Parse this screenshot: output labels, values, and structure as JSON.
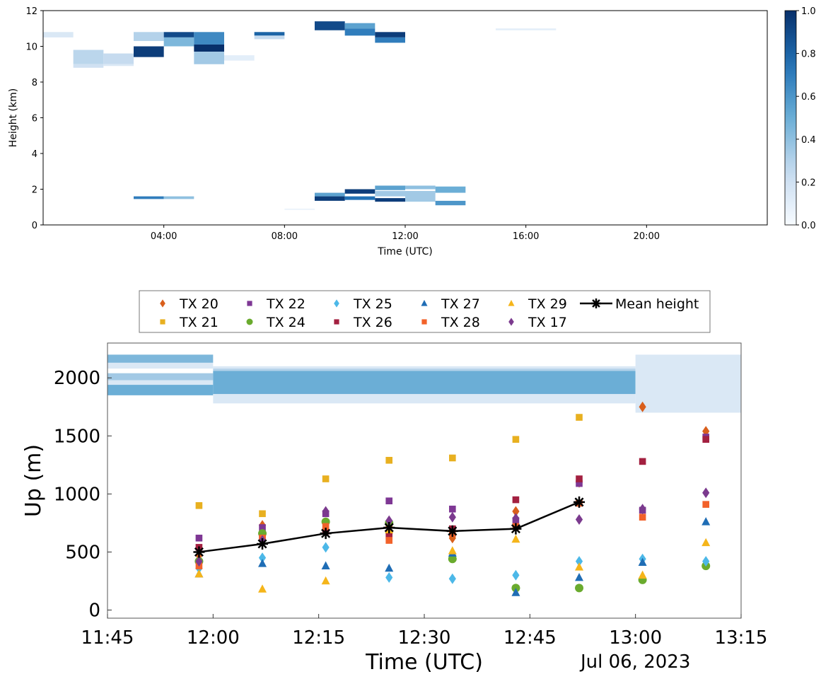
{
  "chart_data": [
    {
      "type": "heatmap",
      "xlabel": "Time (UTC)",
      "ylabel": "Height (km)",
      "x_ticks": [
        "04:00",
        "08:00",
        "12:00",
        "16:00",
        "20:00"
      ],
      "x_tick_hours": [
        4,
        8,
        12,
        16,
        20
      ],
      "y_ticks": [
        "0",
        "2",
        "4",
        "6",
        "8",
        "10",
        "12"
      ],
      "xlim_hours": [
        0,
        24
      ],
      "ylim_km": [
        0,
        12
      ],
      "colorbar": {
        "ticks": [
          "0.0",
          "0.2",
          "0.4",
          "0.6",
          "0.8",
          "1.0"
        ],
        "range": [
          0,
          1
        ],
        "colormap": "Blues"
      },
      "cells": [
        {
          "t0": 0.0,
          "t1": 1.0,
          "h0": 10.5,
          "h1": 10.8,
          "v": 0.15
        },
        {
          "t0": 1.0,
          "t1": 2.0,
          "h0": 9.0,
          "h1": 9.8,
          "v": 0.28
        },
        {
          "t0": 1.0,
          "t1": 2.0,
          "h0": 8.8,
          "h1": 9.0,
          "v": 0.2
        },
        {
          "t0": 2.0,
          "t1": 3.0,
          "h0": 9.0,
          "h1": 9.6,
          "v": 0.25
        },
        {
          "t0": 2.0,
          "t1": 3.0,
          "h0": 8.9,
          "h1": 9.0,
          "v": 0.15
        },
        {
          "t0": 3.0,
          "t1": 4.0,
          "h0": 10.3,
          "h1": 10.8,
          "v": 0.3
        },
        {
          "t0": 3.0,
          "t1": 4.0,
          "h0": 9.4,
          "h1": 10.0,
          "v": 0.95
        },
        {
          "t0": 4.0,
          "t1": 5.0,
          "h0": 10.5,
          "h1": 10.8,
          "v": 0.9
        },
        {
          "t0": 4.0,
          "t1": 5.0,
          "h0": 10.0,
          "h1": 10.5,
          "v": 0.45
        },
        {
          "t0": 5.0,
          "t1": 6.0,
          "h0": 10.1,
          "h1": 10.8,
          "v": 0.65
        },
        {
          "t0": 5.0,
          "t1": 6.0,
          "h0": 9.7,
          "h1": 10.1,
          "v": 1.0
        },
        {
          "t0": 5.0,
          "t1": 6.0,
          "h0": 9.0,
          "h1": 9.7,
          "v": 0.35
        },
        {
          "t0": 6.0,
          "t1": 7.0,
          "h0": 9.2,
          "h1": 9.5,
          "v": 0.1
        },
        {
          "t0": 7.0,
          "t1": 8.0,
          "h0": 10.6,
          "h1": 10.8,
          "v": 0.8
        },
        {
          "t0": 7.0,
          "t1": 8.0,
          "h0": 10.4,
          "h1": 10.6,
          "v": 0.25
        },
        {
          "t0": 9.0,
          "t1": 10.0,
          "h0": 10.9,
          "h1": 11.4,
          "v": 0.9
        },
        {
          "t0": 10.0,
          "t1": 11.0,
          "h0": 11.0,
          "h1": 11.3,
          "v": 0.55
        },
        {
          "t0": 10.0,
          "t1": 11.0,
          "h0": 10.6,
          "h1": 11.0,
          "v": 0.7
        },
        {
          "t0": 11.0,
          "t1": 12.0,
          "h0": 10.5,
          "h1": 10.8,
          "v": 0.95
        },
        {
          "t0": 11.0,
          "t1": 12.0,
          "h0": 10.2,
          "h1": 10.5,
          "v": 0.7
        },
        {
          "t0": 15.0,
          "t1": 17.0,
          "h0": 10.9,
          "h1": 11.0,
          "v": 0.1
        },
        {
          "t0": 3.0,
          "t1": 4.0,
          "h0": 1.45,
          "h1": 1.6,
          "v": 0.7
        },
        {
          "t0": 4.0,
          "t1": 5.0,
          "h0": 1.45,
          "h1": 1.6,
          "v": 0.4
        },
        {
          "t0": 8.0,
          "t1": 9.0,
          "h0": 0.85,
          "h1": 0.9,
          "v": 0.1
        },
        {
          "t0": 9.0,
          "t1": 10.0,
          "h0": 1.6,
          "h1": 1.8,
          "v": 0.55
        },
        {
          "t0": 9.0,
          "t1": 10.0,
          "h0": 1.35,
          "h1": 1.6,
          "v": 0.95
        },
        {
          "t0": 10.0,
          "t1": 11.0,
          "h0": 1.75,
          "h1": 2.0,
          "v": 0.95
        },
        {
          "t0": 10.0,
          "t1": 11.0,
          "h0": 1.4,
          "h1": 1.6,
          "v": 0.75
        },
        {
          "t0": 11.0,
          "t1": 12.0,
          "h0": 1.95,
          "h1": 2.2,
          "v": 0.55
        },
        {
          "t0": 11.0,
          "t1": 12.0,
          "h0": 1.6,
          "h1": 1.9,
          "v": 0.35
        },
        {
          "t0": 11.0,
          "t1": 12.0,
          "h0": 1.3,
          "h1": 1.5,
          "v": 0.95
        },
        {
          "t0": 12.0,
          "t1": 13.0,
          "h0": 2.0,
          "h1": 2.2,
          "v": 0.4
        },
        {
          "t0": 12.0,
          "t1": 13.0,
          "h0": 1.3,
          "h1": 1.9,
          "v": 0.35
        },
        {
          "t0": 13.0,
          "t1": 14.0,
          "h0": 1.8,
          "h1": 2.15,
          "v": 0.5
        },
        {
          "t0": 13.0,
          "t1": 14.0,
          "h0": 1.1,
          "h1": 1.35,
          "v": 0.6
        }
      ]
    },
    {
      "type": "scatter",
      "xlabel": "Time (UTC)",
      "ylabel": "Up (m)",
      "date_label": "Jul 06, 2023",
      "x_ticks": [
        "11:45",
        "12:00",
        "12:15",
        "12:30",
        "12:45",
        "13:00",
        "13:15"
      ],
      "y_ticks": [
        "0",
        "500",
        "1000",
        "1500",
        "2000"
      ],
      "xlim": [
        "11:45",
        "13:15"
      ],
      "ylim": [
        -70,
        2300
      ],
      "background_bands": [
        {
          "t0": "11:45",
          "t1": "12:00",
          "h0": 2130,
          "h1": 2200,
          "v": 0.45
        },
        {
          "t0": "11:45",
          "t1": "12:00",
          "h0": 2080,
          "h1": 2130,
          "v": 0.15
        },
        {
          "t0": "11:45",
          "t1": "12:00",
          "h0": 1980,
          "h1": 2040,
          "v": 0.35
        },
        {
          "t0": "11:45",
          "t1": "12:00",
          "h0": 1940,
          "h1": 1980,
          "v": 0.15
        },
        {
          "t0": "11:45",
          "t1": "12:00",
          "h0": 1850,
          "h1": 1940,
          "v": 0.5
        },
        {
          "t0": "12:00",
          "t1": "13:00",
          "h0": 2080,
          "h1": 2100,
          "v": 0.15
        },
        {
          "t0": "12:00",
          "t1": "13:00",
          "h0": 2060,
          "h1": 2080,
          "v": 0.3
        },
        {
          "t0": "12:00",
          "t1": "13:00",
          "h0": 1860,
          "h1": 2060,
          "v": 0.5
        },
        {
          "t0": "12:00",
          "t1": "13:00",
          "h0": 1780,
          "h1": 1860,
          "v": 0.15
        },
        {
          "t0": "13:00",
          "t1": "13:15",
          "h0": 1700,
          "h1": 2200,
          "v": 0.15
        }
      ],
      "series": [
        {
          "name": "TX 20",
          "color": "#d95f1c",
          "marker": "diamond",
          "x": [
            "11:58",
            "12:07",
            "12:16",
            "12:25",
            "12:34",
            "12:43",
            "12:52",
            "13:01",
            "13:10"
          ],
          "y": [
            470,
            730,
            680,
            720,
            620,
            850,
            1100,
            1750,
            1540
          ]
        },
        {
          "name": "TX 21",
          "color": "#e8b020",
          "marker": "square",
          "x": [
            "11:58",
            "12:07",
            "12:16",
            "12:25",
            "12:34",
            "12:43",
            "12:52"
          ],
          "y": [
            900,
            830,
            1130,
            1290,
            1310,
            1470,
            1660
          ]
        },
        {
          "name": "TX 22",
          "color": "#7e3794",
          "marker": "square",
          "x": [
            "11:58",
            "12:07",
            "12:16",
            "12:25",
            "12:34",
            "12:43",
            "12:52",
            "13:01",
            "13:10"
          ],
          "y": [
            620,
            710,
            830,
            940,
            870,
            770,
            1090,
            860,
            1490
          ]
        },
        {
          "name": "TX 24",
          "color": "#6aab2e",
          "marker": "circle",
          "x": [
            "11:58",
            "12:07",
            "12:16",
            "12:25",
            "12:34",
            "12:43",
            "12:52",
            "13:01",
            "13:10"
          ],
          "y": [
            420,
            660,
            760,
            750,
            440,
            190,
            190,
            260,
            380
          ]
        },
        {
          "name": "TX 25",
          "color": "#4cb8e8",
          "marker": "diamond",
          "x": [
            "11:58",
            "12:07",
            "12:16",
            "12:25",
            "12:34",
            "12:43",
            "12:52",
            "13:01",
            "13:10"
          ],
          "y": [
            360,
            450,
            540,
            280,
            270,
            300,
            420,
            440,
            420
          ]
        },
        {
          "name": "TX 26",
          "color": "#a32040",
          "marker": "square",
          "x": [
            "11:58",
            "12:07",
            "12:16",
            "12:25",
            "12:34",
            "12:43",
            "12:52",
            "13:01",
            "13:10"
          ],
          "y": [
            540,
            620,
            680,
            640,
            700,
            950,
            1130,
            1280,
            1470
          ]
        },
        {
          "name": "TX 27",
          "color": "#1f6db5",
          "marker": "triangle",
          "x": [
            "11:58",
            "12:07",
            "12:16",
            "12:25",
            "12:34",
            "12:43",
            "12:52",
            "13:01",
            "13:10"
          ],
          "y": [
            310,
            400,
            380,
            360,
            490,
            150,
            280,
            410,
            760
          ]
        },
        {
          "name": "TX 28",
          "color": "#f2622a",
          "marker": "square",
          "x": [
            "11:58",
            "12:07",
            "12:16",
            "12:25",
            "12:34",
            "12:43",
            "12:52",
            "13:01",
            "13:10"
          ],
          "y": [
            380,
            620,
            720,
            600,
            660,
            720,
            920,
            800,
            910
          ]
        },
        {
          "name": "TX 29",
          "color": "#f5b51a",
          "marker": "triangle",
          "x": [
            "11:58",
            "12:07",
            "12:16",
            "12:25",
            "12:34",
            "12:43",
            "12:52",
            "13:01",
            "13:10"
          ],
          "y": [
            310,
            180,
            250,
            690,
            510,
            610,
            370,
            300,
            580
          ]
        },
        {
          "name": "TX 17",
          "color": "#7b3a8e",
          "marker": "diamond",
          "x": [
            "11:58",
            "12:07",
            "12:16",
            "12:25",
            "12:34",
            "12:43",
            "12:52",
            "13:01",
            "13:10"
          ],
          "y": [
            420,
            600,
            850,
            770,
            800,
            790,
            780,
            870,
            1010
          ]
        },
        {
          "name": "Mean height",
          "color": "#000000",
          "marker": "star-line",
          "x": [
            "11:58",
            "12:07",
            "12:16",
            "12:25",
            "12:34",
            "12:43",
            "12:52"
          ],
          "y": [
            500,
            570,
            660,
            710,
            680,
            700,
            930
          ]
        }
      ],
      "legend": {
        "placement": "top-center",
        "entries": [
          "TX 20",
          "TX 22",
          "TX 25",
          "TX 27",
          "TX 29",
          "Mean height",
          "TX 21",
          "TX 24",
          "TX 26",
          "TX 28",
          "TX 17"
        ]
      }
    }
  ]
}
